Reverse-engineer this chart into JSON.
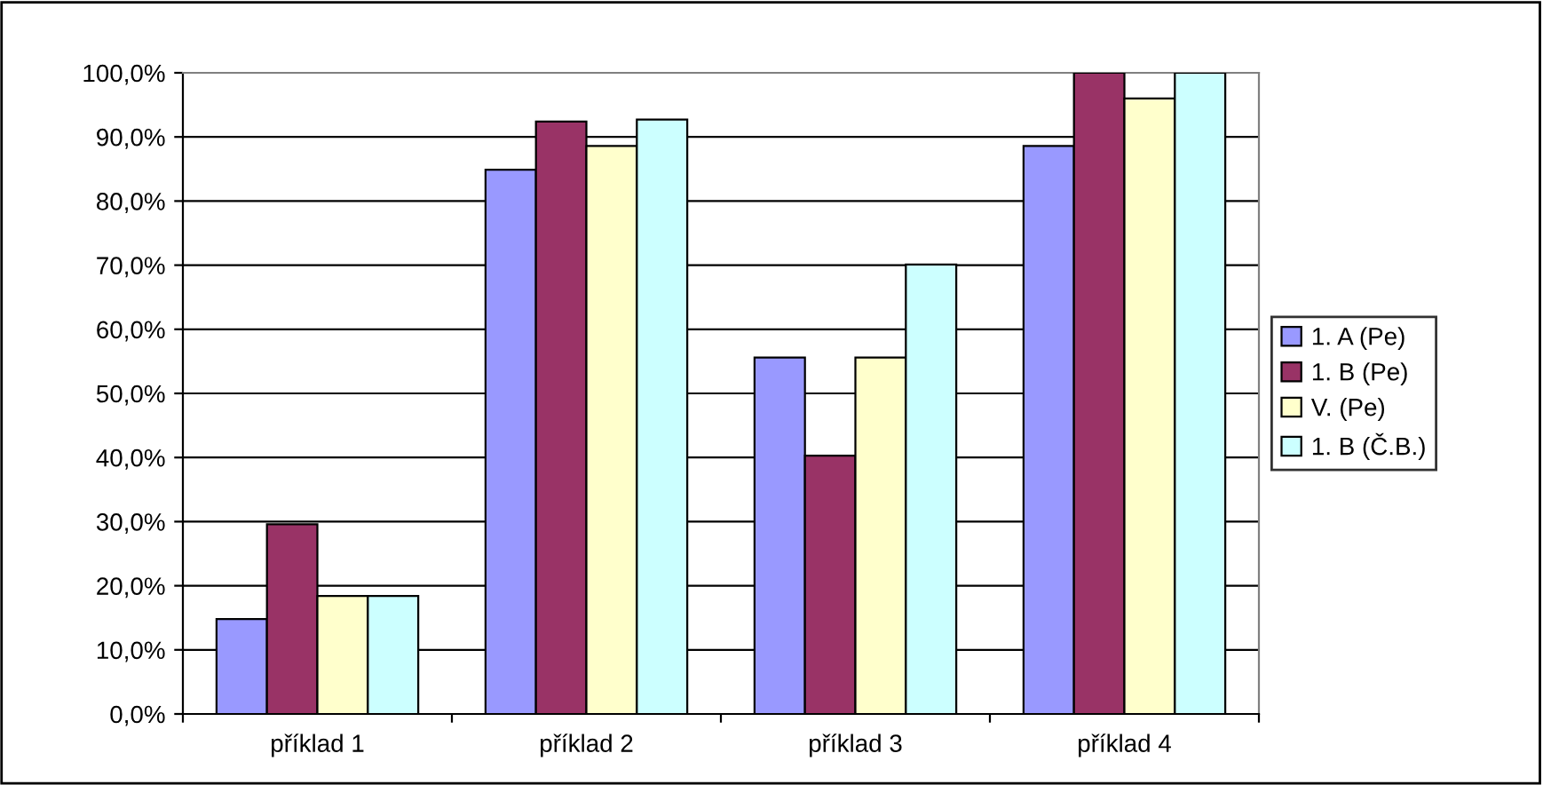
{
  "chart_data": {
    "type": "bar",
    "categories": [
      "příklad 1",
      "příklad 2",
      "příklad 3",
      "příklad 4"
    ],
    "series": [
      {
        "name": "1. A (Pe)",
        "color": "#9999ff",
        "values": [
          14.8,
          84.9,
          55.6,
          88.6
        ]
      },
      {
        "name": "1. B (Pe)",
        "color": "#993366",
        "values": [
          29.6,
          92.4,
          40.3,
          100
        ]
      },
      {
        "name": "V. (Pe)",
        "color": "#ffffcc",
        "values": [
          18.4,
          88.6,
          55.6,
          96.0
        ]
      },
      {
        "name": "1. B (Č.B.)",
        "color": "#ccffff",
        "values": [
          18.4,
          92.7,
          70.1,
          100
        ]
      }
    ],
    "ylim": [
      0,
      100
    ],
    "yticks": [
      {
        "value": 0,
        "label": "0,0%"
      },
      {
        "value": 10,
        "label": "10,0%"
      },
      {
        "value": 20,
        "label": "20,0%"
      },
      {
        "value": 30,
        "label": "30,0%"
      },
      {
        "value": 40,
        "label": "40,0%"
      },
      {
        "value": 50,
        "label": "50,0%"
      },
      {
        "value": 60,
        "label": "60,0%"
      },
      {
        "value": 70,
        "label": "70,0%"
      },
      {
        "value": 80,
        "label": "80,0%"
      },
      {
        "value": 90,
        "label": "90,0%"
      },
      {
        "value": 100,
        "label": "100,0%"
      }
    ],
    "grid": "y",
    "legend": "right"
  }
}
